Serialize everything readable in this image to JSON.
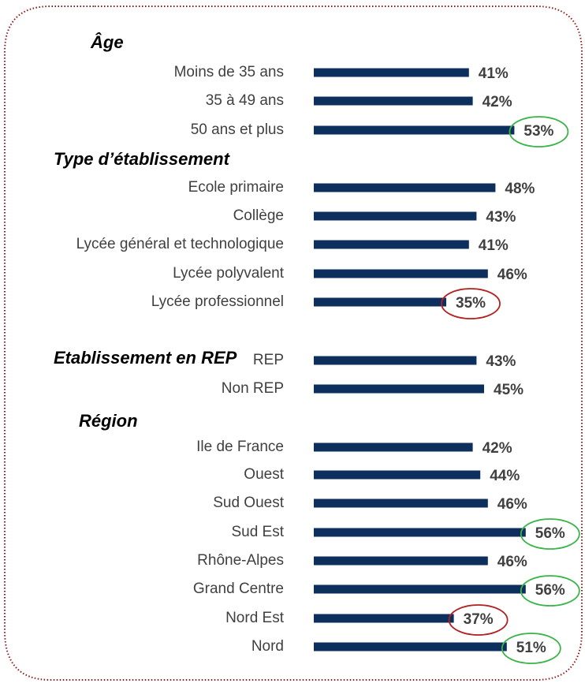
{
  "chart_data": {
    "type": "bar",
    "color": "#0d2f5e",
    "xlim": [
      0,
      100
    ],
    "groups": [
      {
        "title": "Âge",
        "categories": [
          "Moins de 35 ans",
          "35 à 49 ans",
          "50 ans et plus"
        ],
        "values": [
          41,
          42,
          53
        ],
        "value_labels": [
          "41%",
          "42%",
          "53%"
        ],
        "circle_colors": [
          null,
          null,
          "#3bb54a"
        ]
      },
      {
        "title": "Type d’établissement",
        "categories": [
          "Ecole primaire",
          "Collège",
          "Lycée général et technologique",
          "Lycée polyvalent",
          "Lycée professionnel"
        ],
        "values": [
          48,
          43,
          41,
          46,
          35
        ],
        "value_labels": [
          "48%",
          "43%",
          "41%",
          "46%",
          "35%"
        ],
        "circle_colors": [
          null,
          null,
          null,
          null,
          "#b22222"
        ]
      },
      {
        "title": "Etablissement en REP",
        "categories": [
          "REP",
          "Non REP"
        ],
        "values": [
          43,
          45
        ],
        "value_labels": [
          "43%",
          "45%"
        ],
        "circle_colors": [
          null,
          null
        ]
      },
      {
        "title": "Région",
        "categories": [
          "Ile de France",
          "Ouest",
          "Sud Ouest",
          "Sud Est",
          "Rhône-Alpes",
          "Grand Centre",
          "Nord Est",
          "Nord"
        ],
        "values": [
          42,
          44,
          46,
          56,
          46,
          56,
          37,
          51
        ],
        "value_labels": [
          "42%",
          "44%",
          "46%",
          "56%",
          "46%",
          "56%",
          "37%",
          "51%"
        ],
        "circle_colors": [
          null,
          null,
          null,
          "#3bb54a",
          null,
          "#3bb54a",
          "#b22222",
          "#3bb54a"
        ]
      }
    ]
  }
}
